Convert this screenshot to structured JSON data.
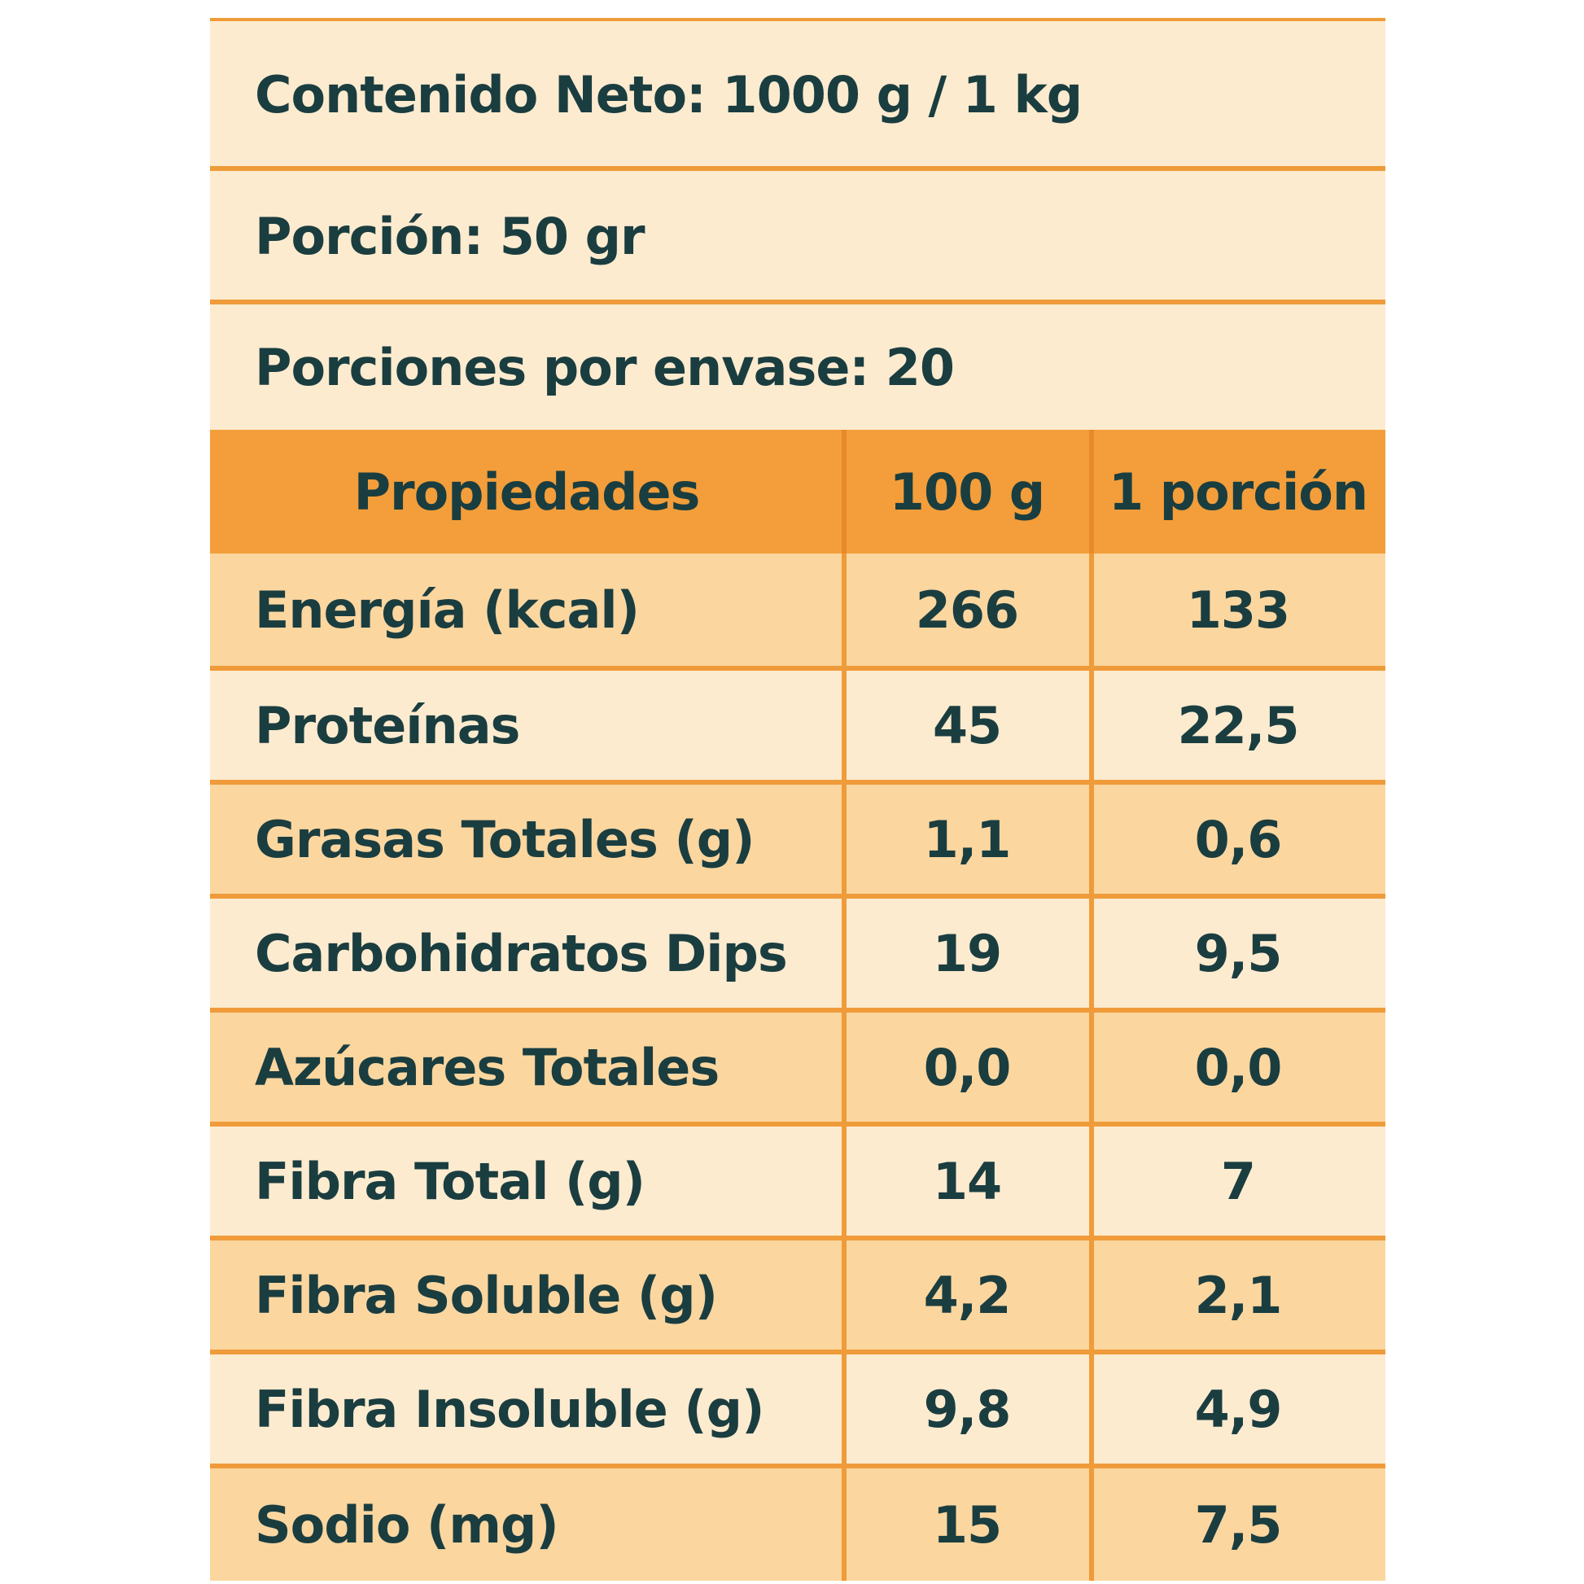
{
  "info": {
    "net_content": "Contenido Neto: 1000 g / 1 kg",
    "portion": "Porción: 50 gr",
    "portions_per_pack": "Porciones por envase: 20"
  },
  "table": {
    "headers": [
      "Propiedades",
      "100 g",
      "1 porción"
    ],
    "rows": [
      {
        "property": "Energía (kcal)",
        "per100": "266",
        "perPortion": "133"
      },
      {
        "property": "Proteínas",
        "per100": "45",
        "perPortion": "22,5"
      },
      {
        "property": "Grasas Totales (g)",
        "per100": "1,1",
        "perPortion": "0,6"
      },
      {
        "property": "Carbohidratos Dips",
        "per100": "19",
        "perPortion": "9,5"
      },
      {
        "property": "Azúcares Totales",
        "per100": "0,0",
        "perPortion": "0,0"
      },
      {
        "property": "Fibra Total (g)",
        "per100": "14",
        "perPortion": "7"
      },
      {
        "property": "Fibra Soluble (g)",
        "per100": "4,2",
        "perPortion": "2,1"
      },
      {
        "property": "Fibra Insoluble (g)",
        "per100": "9,8",
        "perPortion": "4,9"
      },
      {
        "property": "Sodio (mg)",
        "per100": "15",
        "perPortion": "7,5"
      }
    ]
  },
  "colors": {
    "text": "#1a3d40",
    "light_row": "#fdebcf",
    "dark_row": "#fbd69f",
    "header": "#f39e3a",
    "lines": "#ef9b3a"
  }
}
